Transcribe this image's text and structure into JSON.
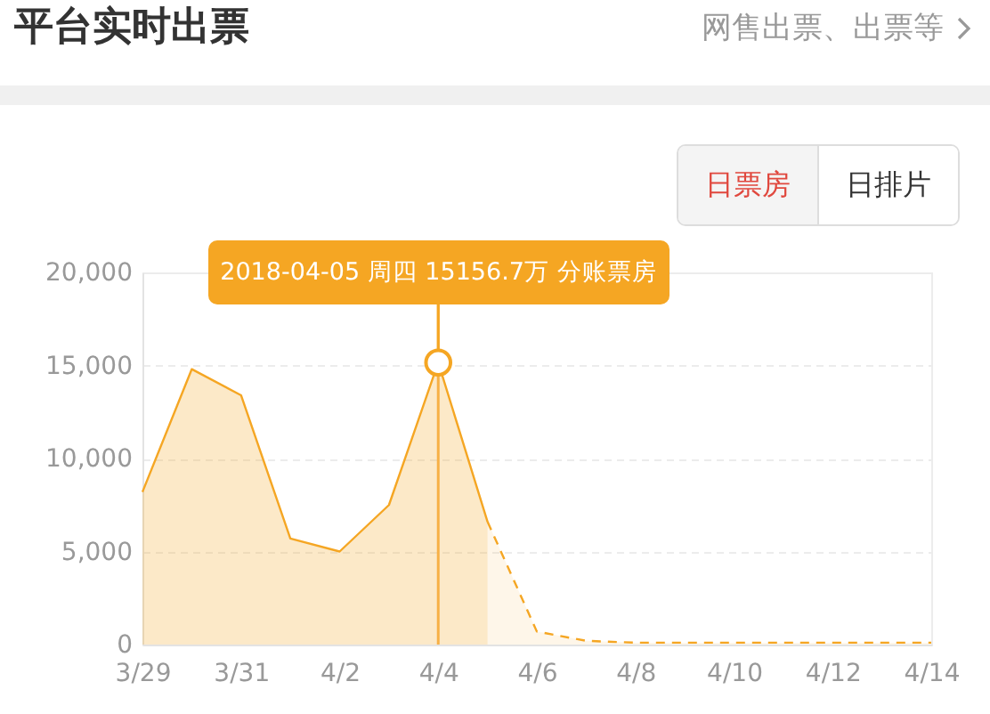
{
  "chart_data": {
    "type": "area",
    "title": "平台实时出票",
    "subtitle": "网售出票、出票等",
    "annotations": [
      "日票房",
      "日排片",
      {
        "text": "2018-04-05 周四 15156.7万 分账票房",
        "x": "2018-04-04",
        "y": 15156.7
      }
    ],
    "series": [
      {
        "color": "#f5a623",
        "line_style": "solid",
        "x": [
          "2018-03-29",
          "2018-03-30",
          "2018-03-31",
          "2018-04-01",
          "2018-04-02",
          "2018-04-03",
          "2018-04-04",
          "2018-04-05"
        ],
        "values": [
          8200,
          14800,
          13400,
          5700,
          5000,
          7500,
          15156.7,
          6600
        ]
      },
      {
        "color": "#f5a623",
        "line_style": "dashed",
        "x": [
          "2018-04-05",
          "2018-04-06",
          "2018-04-07",
          "2018-04-08",
          "2018-04-09",
          "2018-04-10",
          "2018-04-11",
          "2018-04-12",
          "2018-04-13",
          "2018-04-14"
        ],
        "values": [
          6600,
          700,
          200,
          100,
          100,
          100,
          100,
          100,
          100,
          100
        ]
      }
    ],
    "xlim": [
      "2018-03-29",
      "2018-04-14"
    ],
    "xticks": [
      {
        "value": "2018-03-29",
        "label": "3/29"
      },
      {
        "value": "2018-03-31",
        "label": "3/31"
      },
      {
        "value": "2018-04-02",
        "label": "4/2"
      },
      {
        "value": "2018-04-04",
        "label": "4/4"
      },
      {
        "value": "2018-04-06",
        "label": "4/6"
      },
      {
        "value": "2018-04-08",
        "label": "4/8"
      },
      {
        "value": "2018-04-10",
        "label": "4/10"
      },
      {
        "value": "2018-04-12",
        "label": "4/12"
      },
      {
        "value": "2018-04-14",
        "label": "4/14"
      }
    ],
    "ylim": [
      0,
      20000
    ],
    "yticks": [
      {
        "value": 0,
        "label": "0"
      },
      {
        "value": 5000,
        "label": "5,000"
      },
      {
        "value": 10000,
        "label": "10,000"
      },
      {
        "value": 15000,
        "label": "15,000"
      },
      {
        "value": 20000,
        "label": "20,000"
      }
    ],
    "grid": "y",
    "ref_lines": [
      {
        "axis": "x",
        "value": "2018-04-04",
        "color": "#f7b046"
      }
    ]
  }
}
